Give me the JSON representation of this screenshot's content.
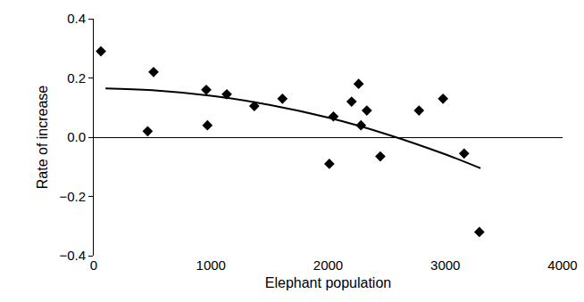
{
  "chart_data": {
    "type": "scatter",
    "x_label": "Elephant population",
    "y_label": "Rate of increase",
    "xlim": [
      0,
      4000
    ],
    "xticks": [
      0,
      1000,
      2000,
      3000,
      4000
    ],
    "ylim": [
      -0.4,
      0.4
    ],
    "yticks": [
      {
        "value": -0.4,
        "label": "−0.4"
      },
      {
        "value": -0.2,
        "label": "−0.2"
      },
      {
        "value": 0,
        "label": "0.0"
      },
      0.2,
      0.4
    ],
    "grid": false,
    "series": [
      {
        "type": "scatter",
        "color": "#000000",
        "marker": "diamond",
        "x": [
          61,
          460,
          510,
          960,
          970,
          1135,
          1370,
          1610,
          2010,
          2045,
          2200,
          2260,
          2280,
          2330,
          2445,
          2775,
          2980,
          3160,
          3290
        ],
        "values": [
          0.29,
          0.02,
          0.22,
          0.16,
          0.04,
          0.145,
          0.105,
          0.13,
          -0.09,
          0.07,
          0.12,
          0.18,
          0.04,
          0.09,
          -0.065,
          0.09,
          0.13,
          -0.055,
          -0.32
        ]
      },
      {
        "type": "line",
        "color": "#000000",
        "line_style": "solid",
        "x": [
          100,
          500,
          1000,
          1500,
          2000,
          2500,
          3000,
          3300
        ],
        "values": [
          0.165,
          0.159,
          0.14,
          0.109,
          0.066,
          0.01,
          -0.058,
          -0.105
        ]
      }
    ]
  }
}
